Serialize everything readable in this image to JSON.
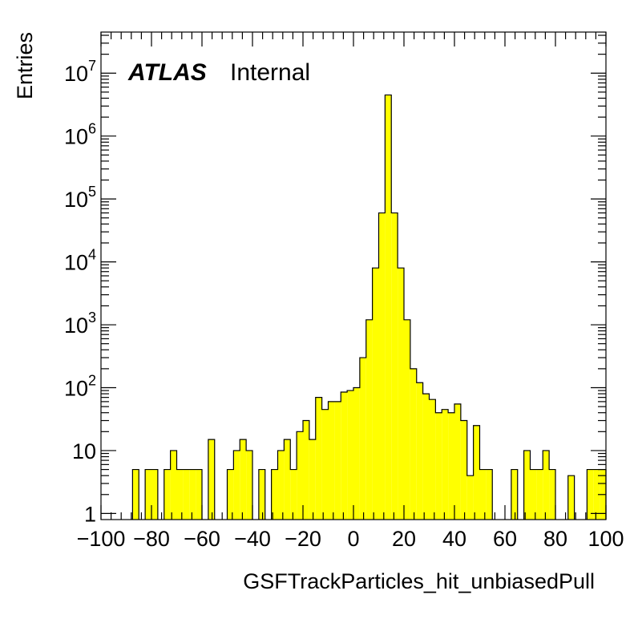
{
  "chart_data": {
    "type": "bar",
    "xlabel": "GSFTrackParticles_hit_unbiasedPull",
    "ylabel": "Entries",
    "xlim": [
      -100,
      100
    ],
    "ylim": [
      0.8,
      45000000
    ],
    "y_scale": "log",
    "bin_width": 2.5,
    "x_tick_labels": [
      "−100",
      "−80",
      "−60",
      "−40",
      "−20",
      "0",
      "20",
      "40",
      "60",
      "80",
      "100"
    ],
    "y_tick_labels": [
      {
        "base": "1",
        "exp": ""
      },
      {
        "base": "10",
        "exp": ""
      },
      {
        "base": "10",
        "exp": "2"
      },
      {
        "base": "10",
        "exp": "3"
      },
      {
        "base": "10",
        "exp": "4"
      },
      {
        "base": "10",
        "exp": "5"
      },
      {
        "base": "10",
        "exp": "6"
      },
      {
        "base": "10",
        "exp": "7"
      }
    ],
    "fill_color": "#ffff00",
    "line_color": "#000000",
    "atlas_label": "ATLAS",
    "atlas_sublabel": "Internal",
    "bins": [
      {
        "x": -86.25,
        "y": 5
      },
      {
        "x": -81.25,
        "y": 5
      },
      {
        "x": -78.75,
        "y": 5
      },
      {
        "x": -73.75,
        "y": 5
      },
      {
        "x": -71.25,
        "y": 10
      },
      {
        "x": -68.75,
        "y": 5
      },
      {
        "x": -66.25,
        "y": 5
      },
      {
        "x": -63.75,
        "y": 5
      },
      {
        "x": -61.25,
        "y": 5
      },
      {
        "x": -56.25,
        "y": 15
      },
      {
        "x": -48.75,
        "y": 5
      },
      {
        "x": -46.25,
        "y": 10
      },
      {
        "x": -43.75,
        "y": 15
      },
      {
        "x": -41.25,
        "y": 10
      },
      {
        "x": -36.25,
        "y": 5
      },
      {
        "x": -31.25,
        "y": 5
      },
      {
        "x": -28.75,
        "y": 10
      },
      {
        "x": -26.25,
        "y": 15
      },
      {
        "x": -23.75,
        "y": 5
      },
      {
        "x": -21.25,
        "y": 20
      },
      {
        "x": -18.75,
        "y": 30
      },
      {
        "x": -16.25,
        "y": 15
      },
      {
        "x": -13.75,
        "y": 70
      },
      {
        "x": -11.25,
        "y": 45
      },
      {
        "x": -8.75,
        "y": 60
      },
      {
        "x": -6.25,
        "y": 60
      },
      {
        "x": -3.75,
        "y": 85
      },
      {
        "x": -1.25,
        "y": 90
      },
      {
        "x": 1.25,
        "y": 100
      },
      {
        "x": 3.75,
        "y": 300
      },
      {
        "x": 6.25,
        "y": 1200
      },
      {
        "x": 8.75,
        "y": 8000
      },
      {
        "x": 11.25,
        "y": 60000
      },
      {
        "x": 13.75,
        "y": 4500000
      },
      {
        "x": 16.25,
        "y": 60000
      },
      {
        "x": 18.75,
        "y": 8000
      },
      {
        "x": 21.25,
        "y": 1200
      },
      {
        "x": 23.75,
        "y": 200
      },
      {
        "x": 26.25,
        "y": 120
      },
      {
        "x": 28.75,
        "y": 80
      },
      {
        "x": 31.25,
        "y": 65
      },
      {
        "x": 33.75,
        "y": 40
      },
      {
        "x": 36.25,
        "y": 45
      },
      {
        "x": 38.75,
        "y": 40
      },
      {
        "x": 41.25,
        "y": 55
      },
      {
        "x": 43.75,
        "y": 30
      },
      {
        "x": 46.25,
        "y": 4
      },
      {
        "x": 48.75,
        "y": 25
      },
      {
        "x": 51.25,
        "y": 5
      },
      {
        "x": 53.75,
        "y": 5
      },
      {
        "x": 63.75,
        "y": 5
      },
      {
        "x": 68.75,
        "y": 10
      },
      {
        "x": 71.25,
        "y": 5
      },
      {
        "x": 73.75,
        "y": 5
      },
      {
        "x": 76.25,
        "y": 10
      },
      {
        "x": 78.75,
        "y": 5
      },
      {
        "x": 86.25,
        "y": 4
      },
      {
        "x": 93.75,
        "y": 5
      },
      {
        "x": 96.25,
        "y": 5
      },
      {
        "x": 98.75,
        "y": 5
      }
    ]
  }
}
